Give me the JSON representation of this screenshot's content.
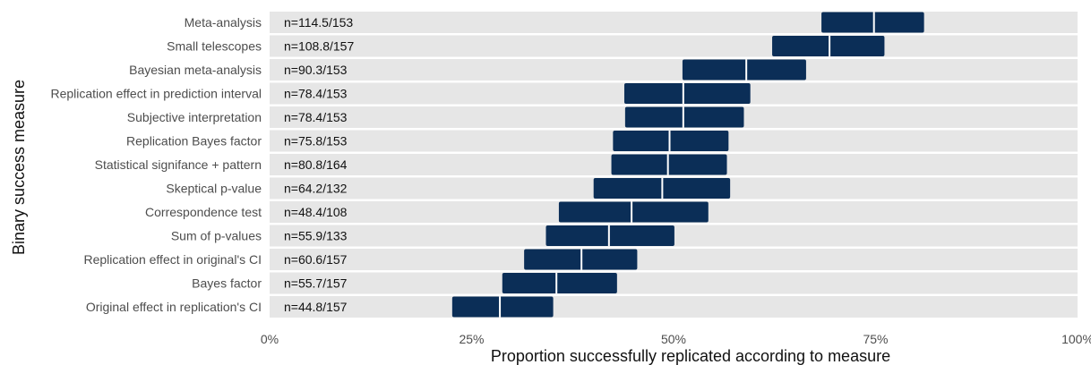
{
  "chart_data": {
    "type": "bar",
    "subtype": "horizontal-interval",
    "xlabel": "Proportion successfully replicated according to measure",
    "ylabel": "Binary success measure",
    "xlim": [
      0,
      1
    ],
    "x_ticks": [
      0,
      0.25,
      0.5,
      0.75,
      1.0
    ],
    "x_tick_labels": [
      "0%",
      "25%",
      "50%",
      "75%",
      "100%"
    ],
    "grid": false,
    "colors": {
      "interval": "#0b2e57",
      "background_bar": "#e6e6e6",
      "median_line": "#ffffff"
    },
    "categories": [
      "Meta-analysis",
      "Small telescopes",
      "Bayesian meta-analysis",
      "Replication effect in prediction interval",
      "Subjective interpretation",
      "Replication Bayes factor",
      "Statistical signifance + pattern",
      "Skeptical p-value",
      "Correspondence test",
      "Sum of p-values",
      "Replication effect in original's CI",
      "Bayes factor",
      "Original effect in replication's CI"
    ],
    "n_labels": [
      "n=114.5/153",
      "n=108.8/157",
      "n=90.3/153",
      "n=78.4/153",
      "n=78.4/153",
      "n=75.8/153",
      "n=80.8/164",
      "n=64.2/132",
      "n=48.4/108",
      "n=55.9/133",
      "n=60.6/157",
      "n=55.7/157",
      "n=44.8/157"
    ],
    "low": [
      0.683,
      0.622,
      0.511,
      0.439,
      0.44,
      0.425,
      0.423,
      0.401,
      0.358,
      0.342,
      0.315,
      0.288,
      0.226
    ],
    "median": [
      0.748,
      0.693,
      0.59,
      0.512,
      0.512,
      0.495,
      0.493,
      0.486,
      0.448,
      0.42,
      0.386,
      0.355,
      0.285
    ],
    "high": [
      0.81,
      0.761,
      0.664,
      0.595,
      0.587,
      0.568,
      0.566,
      0.57,
      0.543,
      0.501,
      0.455,
      0.43,
      0.351
    ]
  }
}
